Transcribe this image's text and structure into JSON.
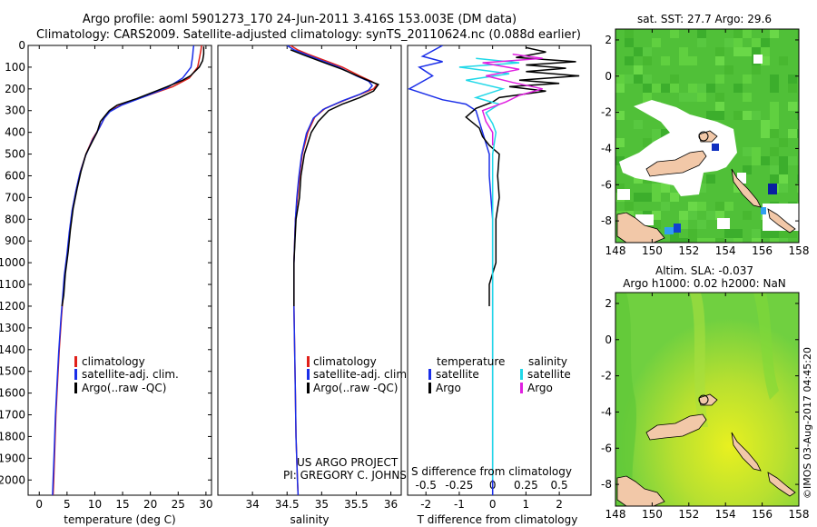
{
  "header": {
    "line1": "Argo profile: aoml 5901273_170 24-Jun-2011 3.416S 153.003E (DM data)",
    "line2": "Climatology: CARS2009. Satellite-adjusted climatology: synTS_20110624.nc (0.088d earlier)"
  },
  "colors": {
    "climatology": "#e0201a",
    "satellite": "#1a2ee8",
    "argo": "#000000",
    "salinity_satellite": "#20d8e8",
    "salinity_argo": "#e020e0",
    "land": "#f2c8a8",
    "missing": "#ffffff"
  },
  "panels": {
    "temperature": {
      "xlabel": "temperature (deg C)"
    },
    "salinity": {
      "xlabel": "salinity"
    },
    "difference": {
      "xlabel": "T difference from climatology",
      "xlabel_top": "S difference from climatology"
    }
  },
  "legend": {
    "climatology": "climatology",
    "satellite": "satellite-adj. clim.",
    "argo": "Argo(..raw -QC)"
  },
  "diff_legend": {
    "temperature": "temperature",
    "salinity": "salinity",
    "satellite": "satellite",
    "argo": "Argo"
  },
  "credit": {
    "line1": "US ARGO PROJECT",
    "line2": "PI: GREGORY C. JOHNSON"
  },
  "maps": {
    "sst_title": "sat. SST: 27.7 Argo: 29.6",
    "sla_title1": "Altim. SLA: -0.037",
    "sla_title2": "Argo h1000: 0.02 h2000: NaN",
    "stamp": "©IMOS 03-Aug-2017 04:45:20"
  },
  "chart_data": [
    {
      "type": "line",
      "title": "",
      "xlabel": "temperature (deg C)",
      "ylabel": "",
      "xlim": [
        -2,
        31
      ],
      "ylim": [
        2070,
        0
      ],
      "xticks": [
        0,
        5,
        10,
        15,
        20,
        25,
        30
      ],
      "yticks": [
        0,
        100,
        200,
        300,
        400,
        500,
        600,
        700,
        800,
        900,
        1000,
        1100,
        1200,
        1300,
        1400,
        1500,
        1600,
        1700,
        1800,
        1900,
        2000
      ],
      "series": [
        {
          "name": "climatology",
          "color": "#e0201a",
          "points": [
            [
              29.2,
              0
            ],
            [
              29.1,
              20
            ],
            [
              28.9,
              50
            ],
            [
              28.5,
              100
            ],
            [
              27.0,
              150
            ],
            [
              24.0,
              190
            ],
            [
              19.5,
              230
            ],
            [
              15.0,
              270
            ],
            [
              12.8,
              300
            ],
            [
              11.8,
              330
            ],
            [
              10.8,
              380
            ],
            [
              9.6,
              430
            ],
            [
              8.4,
              500
            ],
            [
              7.4,
              580
            ],
            [
              6.7,
              660
            ],
            [
              6.0,
              750
            ],
            [
              5.5,
              850
            ],
            [
              5.1,
              950
            ],
            [
              4.6,
              1050
            ],
            [
              4.3,
              1150
            ],
            [
              4.0,
              1250
            ],
            [
              3.6,
              1400
            ],
            [
              3.3,
              1550
            ],
            [
              3.0,
              1700
            ],
            [
              2.8,
              1850
            ],
            [
              2.6,
              2000
            ],
            [
              2.5,
              2070
            ]
          ]
        },
        {
          "name": "satellite-adj. clim.",
          "color": "#1a2ee8",
          "points": [
            [
              27.8,
              0
            ],
            [
              27.7,
              20
            ],
            [
              27.6,
              50
            ],
            [
              27.3,
              100
            ],
            [
              25.8,
              150
            ],
            [
              23.0,
              195
            ],
            [
              19.0,
              235
            ],
            [
              14.8,
              275
            ],
            [
              12.7,
              305
            ],
            [
              11.7,
              335
            ],
            [
              10.7,
              385
            ],
            [
              9.5,
              440
            ],
            [
              8.3,
              510
            ],
            [
              7.3,
              590
            ],
            [
              6.6,
              670
            ],
            [
              5.9,
              760
            ],
            [
              5.4,
              860
            ],
            [
              5.0,
              960
            ],
            [
              4.5,
              1060
            ],
            [
              4.2,
              1160
            ],
            [
              3.9,
              1260
            ],
            [
              3.5,
              1410
            ],
            [
              3.2,
              1560
            ],
            [
              2.9,
              1710
            ],
            [
              2.7,
              1860
            ],
            [
              2.5,
              2000
            ],
            [
              2.4,
              2070
            ]
          ]
        },
        {
          "name": "Argo(..raw -QC)",
          "color": "#000000",
          "points": [
            [
              29.6,
              5
            ],
            [
              29.6,
              40
            ],
            [
              29.4,
              70
            ],
            [
              28.8,
              100
            ],
            [
              27.2,
              140
            ],
            [
              25.8,
              160
            ],
            [
              23.0,
              190
            ],
            [
              20.5,
              215
            ],
            [
              17.5,
              245
            ],
            [
              14.0,
              275
            ],
            [
              12.6,
              300
            ],
            [
              11.0,
              350
            ],
            [
              10.4,
              400
            ],
            [
              9.6,
              440
            ],
            [
              8.4,
              500
            ],
            [
              7.5,
              580
            ],
            [
              6.8,
              660
            ],
            [
              6.1,
              750
            ],
            [
              5.6,
              850
            ],
            [
              5.2,
              950
            ],
            [
              4.7,
              1050
            ],
            [
              4.4,
              1150
            ],
            [
              4.1,
              1200
            ]
          ]
        }
      ]
    },
    {
      "type": "line",
      "title": "",
      "xlabel": "salinity",
      "ylabel": "",
      "xlim": [
        33.5,
        36.15
      ],
      "ylim": [
        2070,
        0
      ],
      "xticks": [
        34,
        34.5,
        35,
        35.5,
        36
      ],
      "series": [
        {
          "name": "climatology",
          "color": "#e0201a",
          "points": [
            [
              34.55,
              0
            ],
            [
              34.65,
              20
            ],
            [
              34.8,
              40
            ],
            [
              35.05,
              70
            ],
            [
              35.3,
              100
            ],
            [
              35.55,
              140
            ],
            [
              35.72,
              165
            ],
            [
              35.8,
              180
            ],
            [
              35.75,
              200
            ],
            [
              35.6,
              220
            ],
            [
              35.35,
              250
            ],
            [
              35.05,
              290
            ],
            [
              34.9,
              330
            ],
            [
              34.8,
              400
            ],
            [
              34.72,
              500
            ],
            [
              34.68,
              600
            ],
            [
              34.65,
              700
            ],
            [
              34.62,
              800
            ],
            [
              34.6,
              1000
            ],
            [
              34.6,
              1200
            ],
            [
              34.61,
              1400
            ],
            [
              34.62,
              1600
            ],
            [
              34.63,
              1800
            ],
            [
              34.65,
              2000
            ],
            [
              34.66,
              2070
            ]
          ]
        },
        {
          "name": "satellite-adj. clim.",
          "color": "#1a2ee8",
          "points": [
            [
              34.5,
              0
            ],
            [
              34.6,
              20
            ],
            [
              34.76,
              40
            ],
            [
              35.0,
              70
            ],
            [
              35.25,
              100
            ],
            [
              35.5,
              140
            ],
            [
              35.68,
              165
            ],
            [
              35.73,
              185
            ],
            [
              35.68,
              205
            ],
            [
              35.55,
              225
            ],
            [
              35.3,
              255
            ],
            [
              35.02,
              295
            ],
            [
              34.88,
              335
            ],
            [
              34.78,
              405
            ],
            [
              34.71,
              505
            ],
            [
              34.67,
              605
            ],
            [
              34.64,
              705
            ],
            [
              34.62,
              805
            ],
            [
              34.6,
              1005
            ],
            [
              34.6,
              1205
            ],
            [
              34.61,
              1405
            ],
            [
              34.62,
              1605
            ],
            [
              34.63,
              1805
            ],
            [
              34.65,
              2005
            ],
            [
              34.66,
              2070
            ]
          ]
        },
        {
          "name": "Argo(..raw -QC)",
          "color": "#000000",
          "points": [
            [
              34.55,
              20
            ],
            [
              34.75,
              45
            ],
            [
              35.0,
              75
            ],
            [
              35.3,
              110
            ],
            [
              35.55,
              145
            ],
            [
              35.7,
              165
            ],
            [
              35.82,
              180
            ],
            [
              35.75,
              210
            ],
            [
              35.55,
              240
            ],
            [
              35.3,
              270
            ],
            [
              35.1,
              300
            ],
            [
              34.95,
              350
            ],
            [
              34.85,
              400
            ],
            [
              34.75,
              500
            ],
            [
              34.7,
              600
            ],
            [
              34.68,
              700
            ],
            [
              34.63,
              800
            ],
            [
              34.6,
              1000
            ],
            [
              34.6,
              1200
            ]
          ]
        }
      ]
    },
    {
      "type": "line",
      "title": "",
      "xlabel": "T difference from climatology",
      "xlabel_top": "S difference from climatology",
      "ylabel": "",
      "xlim": [
        -2.55,
        2.95
      ],
      "ylim": [
        2070,
        0
      ],
      "xticks": [
        -2,
        -1,
        0,
        1,
        2
      ],
      "xticks_top": [
        -0.5,
        -0.25,
        0,
        0.25,
        0.5
      ],
      "series": [
        {
          "name": "temperature satellite",
          "color": "#1a2ee8",
          "points": [
            [
              -1.5,
              0
            ],
            [
              -2.1,
              50
            ],
            [
              -1.5,
              75
            ],
            [
              -2.2,
              100
            ],
            [
              -1.8,
              140
            ],
            [
              -2.5,
              200
            ],
            [
              -1.5,
              250
            ],
            [
              -0.8,
              270
            ],
            [
              -0.5,
              300
            ],
            [
              -0.3,
              400
            ],
            [
              -0.1,
              500
            ],
            [
              -0.1,
              600
            ],
            [
              0,
              800
            ],
            [
              0,
              2000
            ],
            [
              0,
              2070
            ]
          ]
        },
        {
          "name": "temperature Argo",
          "color": "#000000",
          "points": [
            [
              1.0,
              10
            ],
            [
              1.6,
              30
            ],
            [
              0.7,
              55
            ],
            [
              2.5,
              75
            ],
            [
              1.0,
              90
            ],
            [
              2.2,
              105
            ],
            [
              1.0,
              120
            ],
            [
              2.6,
              140
            ],
            [
              0.8,
              160
            ],
            [
              2.0,
              175
            ],
            [
              0.5,
              190
            ],
            [
              1.6,
              210
            ],
            [
              0.2,
              240
            ],
            [
              0.0,
              260
            ],
            [
              -0.5,
              290
            ],
            [
              -0.8,
              330
            ],
            [
              -0.4,
              380
            ],
            [
              -0.3,
              420
            ],
            [
              -0.1,
              460
            ],
            [
              0.2,
              500
            ],
            [
              0.15,
              600
            ],
            [
              0.2,
              700
            ],
            [
              0.1,
              800
            ],
            [
              0.1,
              900
            ],
            [
              0.1,
              1000
            ],
            [
              -0.1,
              1100
            ],
            [
              -0.1,
              1200
            ]
          ]
        },
        {
          "name": "salinity satellite",
          "color": "#20d8e8",
          "points": [
            [
              -0.5,
              60
            ],
            [
              0.8,
              80
            ],
            [
              -1.0,
              100
            ],
            [
              0.5,
              130
            ],
            [
              -0.8,
              160
            ],
            [
              0.3,
              200
            ],
            [
              -0.5,
              240
            ],
            [
              0.2,
              270
            ],
            [
              -0.2,
              310
            ],
            [
              0,
              360
            ],
            [
              0.1,
              400
            ],
            [
              0,
              500
            ],
            [
              0,
              600
            ],
            [
              0,
              800
            ],
            [
              0,
              1000
            ],
            [
              0,
              1500
            ],
            [
              0,
              2000
            ]
          ]
        },
        {
          "name": "salinity Argo",
          "color": "#e020e0",
          "points": [
            [
              0.6,
              40
            ],
            [
              1.5,
              60
            ],
            [
              -0.3,
              80
            ],
            [
              0.8,
              110
            ],
            [
              -0.2,
              140
            ],
            [
              0.6,
              170
            ],
            [
              1.5,
              200
            ],
            [
              0.8,
              230
            ],
            [
              0.4,
              260
            ],
            [
              -0.3,
              300
            ],
            [
              -0.2,
              350
            ],
            [
              0,
              400
            ],
            [
              0,
              460
            ]
          ]
        }
      ]
    },
    {
      "type": "heatmap",
      "title": "sat. SST: 27.7 Argo: 29.6",
      "xlim": [
        148,
        158
      ],
      "ylim": [
        -9.2,
        2.6
      ],
      "xticks": [
        148,
        150,
        152,
        154,
        156,
        158
      ],
      "yticks": [
        2,
        0,
        -2,
        -4,
        -6,
        -8
      ]
    },
    {
      "type": "heatmap",
      "title": "Altim. SLA: -0.037",
      "xlim": [
        148,
        158
      ],
      "ylim": [
        -9.2,
        2.6
      ],
      "xticks": [
        148,
        150,
        152,
        154,
        156,
        158
      ],
      "yticks": [
        2,
        0,
        -2,
        -4,
        -6,
        -8
      ]
    }
  ]
}
